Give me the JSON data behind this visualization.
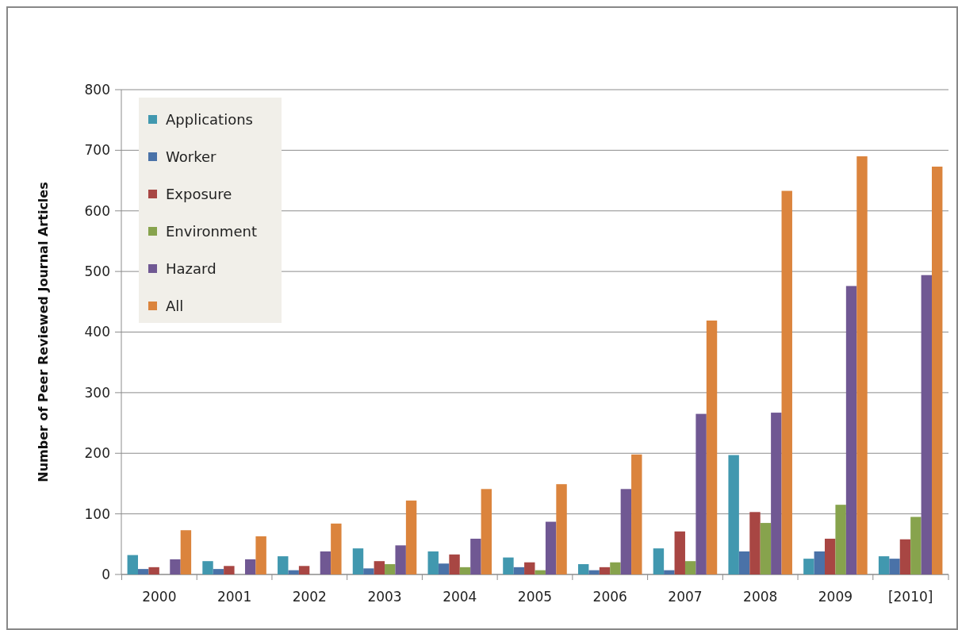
{
  "chart_data": {
    "type": "bar",
    "ylabel": "Number of Peer Reviewed Journal Articles",
    "categories": [
      "2000",
      "2001",
      "2002",
      "2003",
      "2004",
      "2005",
      "2006",
      "2007",
      "2008",
      "2009",
      "[2010]"
    ],
    "series": [
      {
        "name": "Applications",
        "color": "#4198af",
        "values": [
          32,
          22,
          30,
          43,
          38,
          28,
          17,
          43,
          197,
          26,
          30
        ]
      },
      {
        "name": "Worker",
        "color": "#4a72a8",
        "values": [
          9,
          9,
          7,
          10,
          18,
          12,
          7,
          7,
          38,
          38,
          26
        ]
      },
      {
        "name": "Exposure",
        "color": "#a84643",
        "values": [
          12,
          14,
          14,
          22,
          33,
          20,
          12,
          71,
          103,
          59,
          58
        ]
      },
      {
        "name": "Environment",
        "color": "#87a34d",
        "values": [
          0,
          0,
          0,
          17,
          12,
          7,
          20,
          22,
          85,
          115,
          95
        ]
      },
      {
        "name": "Hazard",
        "color": "#705893",
        "values": [
          25,
          25,
          38,
          48,
          59,
          87,
          141,
          265,
          267,
          476,
          494
        ]
      },
      {
        "name": "All",
        "color": "#db843d",
        "values": [
          73,
          63,
          84,
          122,
          141,
          149,
          198,
          419,
          633,
          690,
          673
        ]
      }
    ],
    "ylim": [
      0,
      800
    ],
    "yticks": [
      0,
      100,
      200,
      300,
      400,
      500,
      600,
      700,
      800
    ],
    "grid": "y",
    "legend": "top left"
  }
}
